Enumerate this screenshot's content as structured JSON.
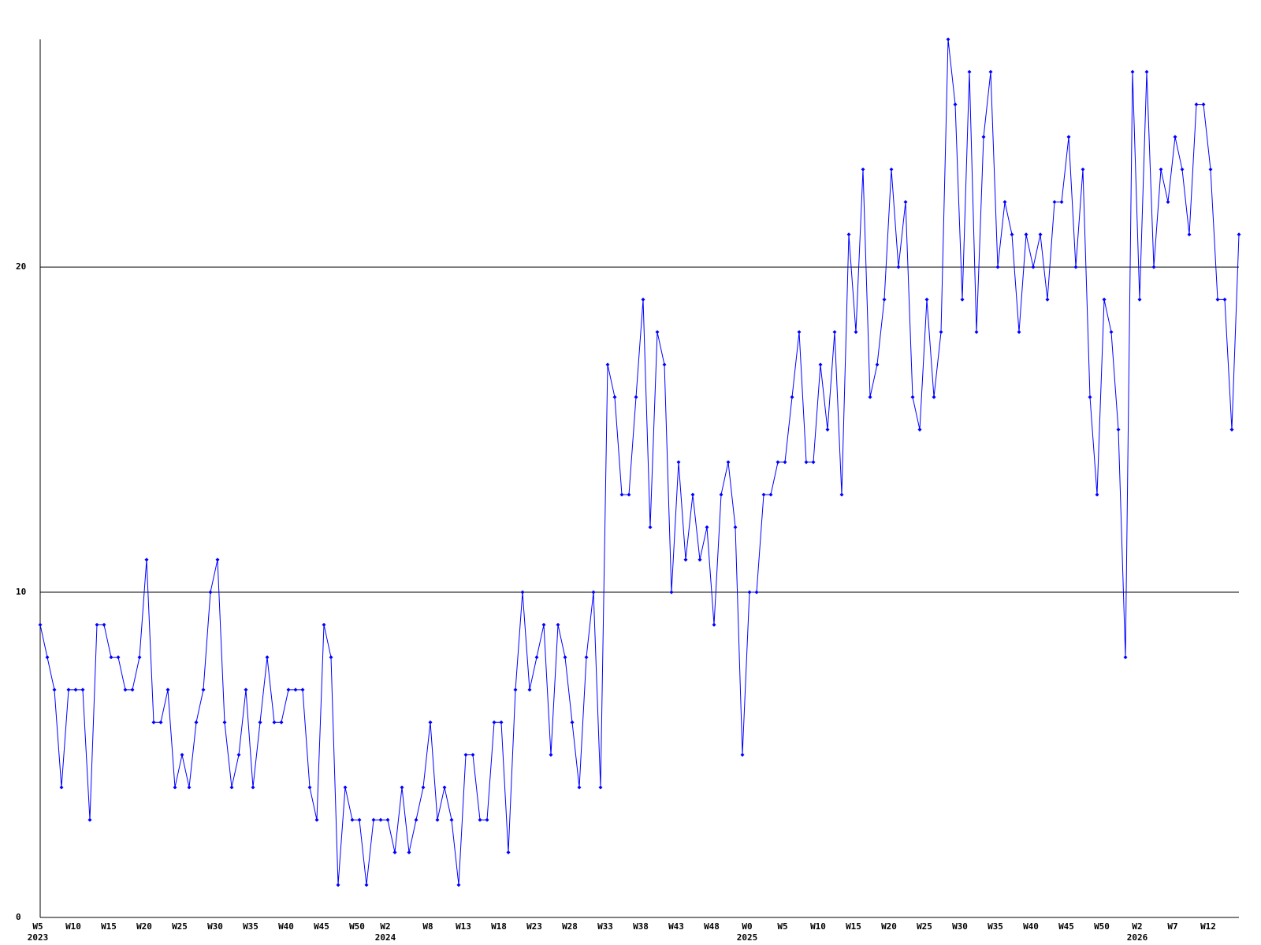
{
  "chart_data": {
    "type": "line",
    "categories": [
      "W5",
      null,
      null,
      null,
      null,
      "W10",
      null,
      null,
      null,
      null,
      "W15",
      null,
      null,
      null,
      null,
      "W20",
      null,
      null,
      null,
      null,
      "W25",
      null,
      null,
      null,
      null,
      "W30",
      null,
      null,
      null,
      null,
      "W35",
      null,
      null,
      null,
      null,
      "W40",
      null,
      null,
      null,
      null,
      "W45",
      null,
      null,
      null,
      null,
      "W50",
      null,
      null,
      null,
      "W2",
      null,
      null,
      null,
      null,
      null,
      "W8",
      null,
      null,
      null,
      null,
      "W13",
      null,
      null,
      null,
      null,
      "W18",
      null,
      null,
      null,
      null,
      "W23",
      null,
      null,
      null,
      null,
      "W28",
      null,
      null,
      null,
      null,
      "W33",
      null,
      null,
      null,
      null,
      "W38",
      null,
      null,
      null,
      null,
      "W43",
      null,
      null,
      null,
      null,
      "W48",
      null,
      null,
      null,
      null,
      "W0",
      null,
      null,
      null,
      null,
      "W5",
      null,
      null,
      null,
      null,
      "W10",
      null,
      null,
      null,
      null,
      "W15",
      null,
      null,
      null,
      null,
      "W20",
      null,
      null,
      null,
      null,
      "W25",
      null,
      null,
      null,
      null,
      "W30",
      null,
      null,
      null,
      null,
      "W35",
      null,
      null,
      null,
      null,
      "W40",
      null,
      null,
      null,
      null,
      "W45",
      null,
      null,
      null,
      null,
      "W50",
      null,
      null,
      null,
      null,
      "W2",
      null,
      null,
      null,
      null,
      "W7",
      null,
      null,
      null,
      null,
      "W12",
      null,
      null,
      null,
      null
    ],
    "years": [
      "2023",
      null,
      null,
      null,
      null,
      null,
      null,
      null,
      null,
      null,
      null,
      null,
      null,
      null,
      null,
      null,
      null,
      null,
      null,
      null,
      null,
      null,
      null,
      null,
      null,
      null,
      null,
      null,
      null,
      null,
      null,
      null,
      null,
      null,
      null,
      null,
      null,
      null,
      null,
      null,
      null,
      null,
      null,
      null,
      null,
      null,
      null,
      null,
      null,
      "2024",
      null,
      null,
      null,
      null,
      null,
      null,
      null,
      null,
      null,
      null,
      null,
      null,
      null,
      null,
      null,
      null,
      null,
      null,
      null,
      null,
      null,
      null,
      null,
      null,
      null,
      null,
      null,
      null,
      null,
      null,
      null,
      null,
      null,
      null,
      null,
      null,
      null,
      null,
      null,
      null,
      null,
      null,
      null,
      null,
      null,
      null,
      null,
      null,
      null,
      null,
      "2025",
      null,
      null,
      null,
      null,
      null,
      null,
      null,
      null,
      null,
      null,
      null,
      null,
      null,
      null,
      null,
      null,
      null,
      null,
      null,
      null,
      null,
      null,
      null,
      null,
      null,
      null,
      null,
      null,
      null,
      null,
      null,
      null,
      null,
      null,
      null,
      null,
      null,
      null,
      null,
      null,
      null,
      null,
      null,
      null,
      null,
      null,
      null,
      null,
      null,
      null,
      null,
      null,
      null,
      null,
      "2026",
      null,
      null,
      null,
      null,
      null,
      null,
      null,
      null,
      null,
      null,
      null,
      null,
      null,
      null
    ],
    "values": [
      9,
      8,
      7,
      4,
      7,
      7,
      7,
      3,
      9,
      9,
      8,
      8,
      7,
      7,
      8,
      11,
      6,
      6,
      7,
      4,
      5,
      4,
      6,
      7,
      10,
      11,
      6,
      4,
      5,
      7,
      4,
      6,
      8,
      6,
      6,
      7,
      7,
      7,
      4,
      3,
      9,
      8,
      1,
      4,
      3,
      3,
      1,
      3,
      3,
      3,
      2,
      4,
      2,
      3,
      4,
      6,
      3,
      4,
      3,
      1,
      5,
      5,
      3,
      3,
      6,
      6,
      2,
      7,
      10,
      7,
      8,
      9,
      5,
      9,
      8,
      6,
      4,
      8,
      10,
      4,
      17,
      16,
      13,
      13,
      16,
      19,
      12,
      18,
      17,
      10,
      14,
      11,
      13,
      11,
      12,
      9,
      13,
      14,
      12,
      5,
      10,
      10,
      13,
      13,
      14,
      14,
      16,
      18,
      14,
      14,
      17,
      15,
      18,
      13,
      21,
      18,
      23,
      16,
      17,
      19,
      23,
      20,
      22,
      16,
      15,
      19,
      16,
      18,
      27,
      25,
      19,
      26,
      18,
      24,
      26,
      20,
      22,
      21,
      18,
      21,
      20,
      21,
      19,
      22,
      22,
      24,
      20,
      23,
      16,
      13,
      19,
      18,
      15,
      8,
      26,
      19,
      26,
      20,
      23,
      22,
      24,
      23,
      21,
      25,
      25,
      23,
      19,
      19,
      15,
      21
    ],
    "color": "#0000ff",
    "ylim": [
      0,
      27
    ],
    "yticks": [
      0,
      10,
      20
    ],
    "grid": true
  }
}
